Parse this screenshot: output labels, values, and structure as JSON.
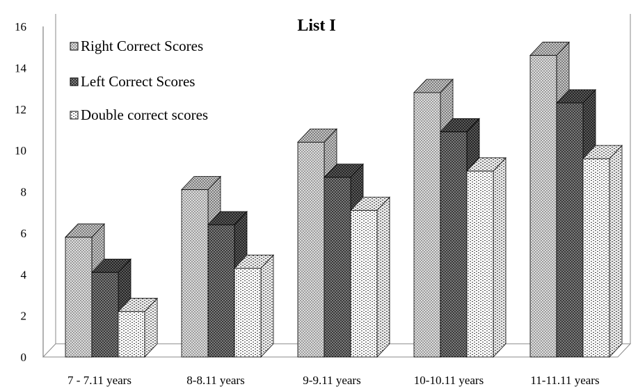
{
  "chart_data": {
    "type": "bar",
    "title": "List I",
    "xlabel": "",
    "ylabel": "",
    "ylim": [
      0,
      16
    ],
    "yticks": [
      0,
      2,
      4,
      6,
      8,
      10,
      12,
      14,
      16
    ],
    "categories": [
      "7 - 7.11 years",
      "8-8.11 years",
      "9-9.11 years",
      "10-10.11 years",
      "11-11.11 years"
    ],
    "series": [
      {
        "name": "Right Correct Scores",
        "values": [
          5.8,
          8.1,
          10.4,
          12.8,
          14.6
        ],
        "pattern": "crosshatch-light"
      },
      {
        "name": "Left Correct Scores",
        "values": [
          4.1,
          6.4,
          8.7,
          10.9,
          12.3
        ],
        "pattern": "crosshatch-dark"
      },
      {
        "name": "Double correct scores",
        "values": [
          2.2,
          4.3,
          7.1,
          9.0,
          9.6
        ],
        "pattern": "dots"
      }
    ],
    "legend_position": "top-left",
    "grid": false,
    "style": "3d-bar"
  }
}
